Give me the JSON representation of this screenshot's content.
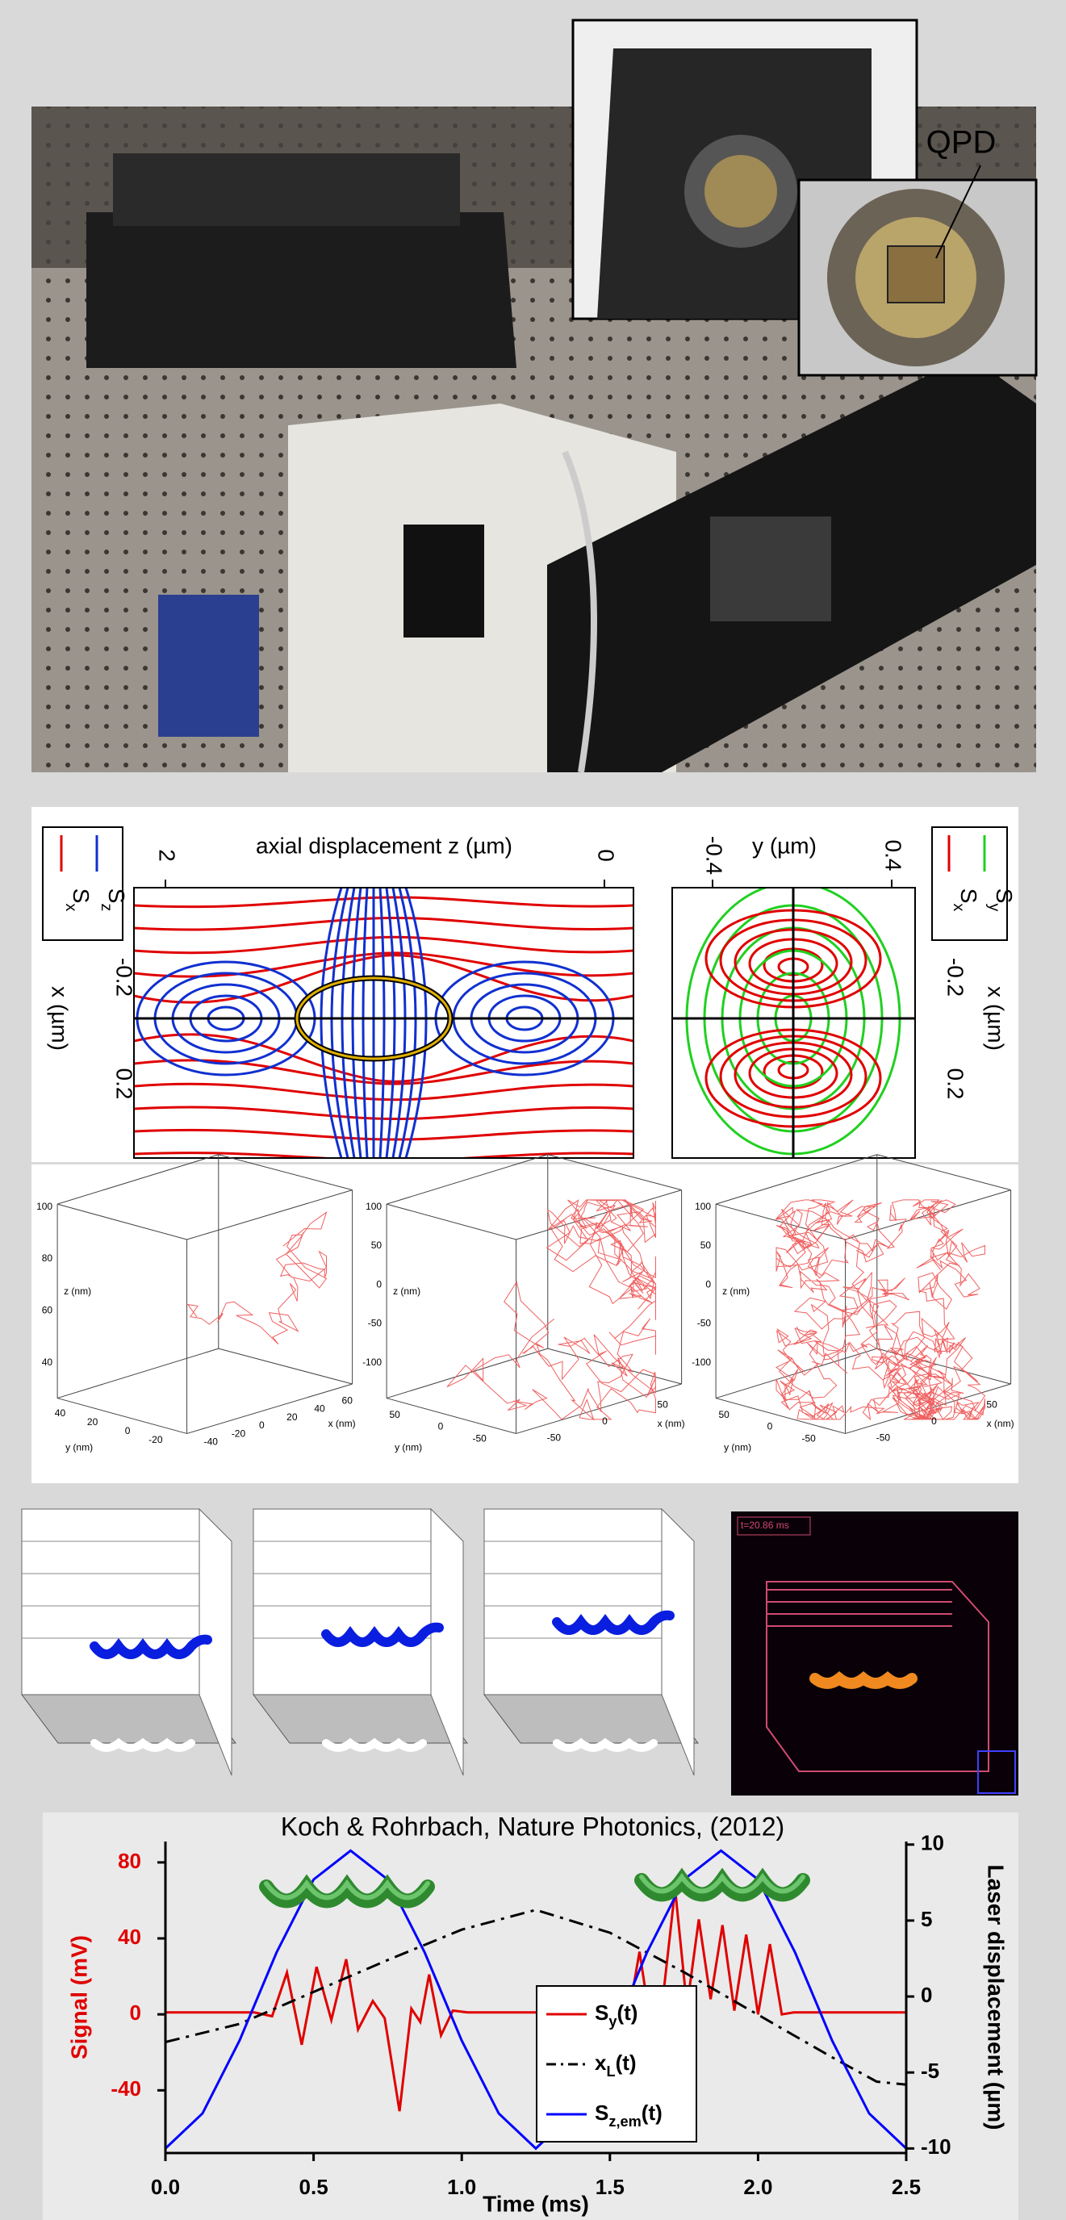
{
  "photo": {
    "inset_label": "QPD"
  },
  "field_maps": {
    "left": {
      "xlabel": "axial displacement z (µm)",
      "xticks": [
        "2",
        "0"
      ],
      "ylabel": "x (µm)",
      "yticks": [
        "-0.2",
        "0.2"
      ],
      "legend": [
        "Sx",
        "Sz"
      ]
    },
    "right": {
      "xlabel": "y (µm)",
      "xticks": [
        "-0.4",
        "0.4"
      ],
      "ylabel": "x (µm)",
      "yticks": [
        "-0.2",
        "0.2"
      ],
      "legend": [
        "Sx",
        "Sy"
      ]
    }
  },
  "trajectories": [
    {
      "zlabel": "z (nm)",
      "zticks": [
        "100",
        "80",
        "60",
        "40"
      ],
      "ylabel": "y (nm)",
      "yticks": [
        "40",
        "20",
        "0",
        "-20"
      ],
      "xlabel": "x (nm)",
      "xticks": [
        "-40",
        "-20",
        "0",
        "20",
        "40",
        "60"
      ]
    },
    {
      "zlabel": "z (nm)",
      "zticks": [
        "100",
        "50",
        "0",
        "-50",
        "-100"
      ],
      "ylabel": "y (nm)",
      "yticks": [
        "50",
        "0",
        "-50"
      ],
      "xlabel": "x (nm)",
      "xticks": [
        "-50",
        "0",
        "50"
      ]
    },
    {
      "zlabel": "z (nm)",
      "zticks": [
        "100",
        "50",
        "0",
        "-50",
        "-100"
      ],
      "ylabel": "y (nm)",
      "yticks": [
        "50",
        "0",
        "-50"
      ],
      "xlabel": "x (nm)",
      "xticks": [
        "-50",
        "0",
        "50"
      ]
    }
  ],
  "reconstruction": {
    "timestamp": "t=20.86 ms"
  },
  "chart_data": {
    "type": "line",
    "title": "Koch & Rohrbach, Nature Photonics, (2012)",
    "xlabel": "Time (ms)",
    "ylabel": "Signal (mV)",
    "y2label": "Laser displacement (µm)",
    "xlim": [
      0,
      2.5
    ],
    "xticks": [
      {
        "value": 0,
        "label": "0.0"
      },
      0.5,
      {
        "value": 1,
        "label": "1.0"
      },
      1.5,
      {
        "value": 2,
        "label": "2.0"
      },
      2.5
    ],
    "ylim": [
      -73,
      91
    ],
    "yticks": [
      80,
      40,
      0,
      -40
    ],
    "y2lim": [
      -10.3,
      10.2
    ],
    "y2ticks": [
      10,
      5,
      0,
      -5,
      -10
    ],
    "legend": "lower center",
    "series": [
      {
        "name": "Sy(t)",
        "color": "#e00000",
        "axis": "y",
        "dash": "solid",
        "x": [
          0,
          0.3,
          0.36,
          0.41,
          0.46,
          0.51,
          0.56,
          0.61,
          0.65,
          0.7,
          0.74,
          0.79,
          0.83,
          0.86,
          0.89,
          0.93,
          0.97,
          1.02,
          1.5,
          1.56,
          1.6,
          1.64,
          1.68,
          1.72,
          1.76,
          1.8,
          1.84,
          1.88,
          1.92,
          1.96,
          2.0,
          2.04,
          2.08,
          2.12,
          2.5
        ],
        "values": [
          1,
          1,
          -1,
          22,
          -16,
          25,
          -3,
          29,
          -8,
          7,
          -2,
          -51,
          3,
          -4,
          21,
          -11,
          2,
          1,
          1,
          -3,
          33,
          -8,
          10,
          66,
          4,
          50,
          8,
          47,
          2,
          42,
          0,
          37,
          0,
          1,
          1
        ]
      },
      {
        "name": "xL(t)",
        "color": "#000000",
        "axis": "y2",
        "dash": "dashdot",
        "x": [
          0,
          0.25,
          0.5,
          0.75,
          1.0,
          1.25,
          1.5,
          1.75,
          2.0,
          2.25,
          2.4,
          2.5
        ],
        "values": [
          -3.0,
          -1.8,
          0.3,
          2.4,
          4.4,
          5.7,
          4.2,
          1.6,
          -1.2,
          -4.0,
          -5.6,
          -5.8
        ]
      },
      {
        "name": "Sz,em(t)",
        "color": "#0000ff",
        "axis": "y2",
        "dash": "solid",
        "x": [
          0,
          0.125,
          0.25,
          0.375,
          0.5,
          0.625,
          0.75,
          0.875,
          1.0,
          1.125,
          1.25,
          1.375,
          1.5,
          1.625,
          1.75,
          1.875,
          2.0,
          2.125,
          2.25,
          2.375,
          2.5
        ],
        "values": [
          -10,
          -7.7,
          -2.9,
          2.9,
          7.7,
          9.6,
          7.7,
          2.9,
          -2.9,
          -7.7,
          -10,
          -7.7,
          -2.9,
          2.9,
          7.7,
          9.6,
          7.7,
          2.9,
          -2.9,
          -7.7,
          -10
        ]
      }
    ]
  }
}
